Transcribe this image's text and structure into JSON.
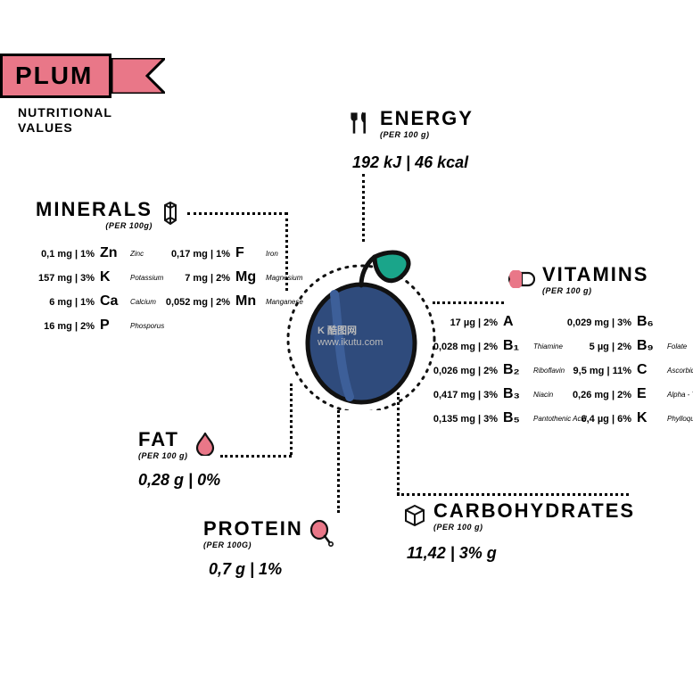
{
  "title": "PLUM",
  "subtitle_l1": "NUTRITIONAL",
  "subtitle_l2": "VALUES",
  "colors": {
    "accent": "#e97788",
    "plum_body": "#2f4b7c",
    "plum_highlight": "#3d5f99",
    "leaf": "#1aa58a",
    "outline": "#111111",
    "bg": "#ffffff"
  },
  "per_label": "(PER 100 g)",
  "per_label_alt": "(PER 100g)",
  "per_label_alt2": "(PER 100G)",
  "energy": {
    "title": "ENERGY",
    "value": "192 kJ | 46 kcal"
  },
  "fat": {
    "title": "FAT",
    "value": "0,28 g | 0%"
  },
  "protein": {
    "title": "PROTEIN",
    "value": "0,7 g | 1%"
  },
  "carbs": {
    "title": "CARBOHYDRATES",
    "value": "11,42 | 3% g"
  },
  "minerals": {
    "title": "MINERALS",
    "col1": [
      {
        "v": "0,1 mg | 1%",
        "s": "Zn",
        "n": "Zinc"
      },
      {
        "v": "157 mg | 3%",
        "s": "K",
        "n": "Potassium"
      },
      {
        "v": "6 mg | 1%",
        "s": "Ca",
        "n": "Calcium"
      },
      {
        "v": "16 mg | 2%",
        "s": "P",
        "n": "Phosporus"
      }
    ],
    "col2": [
      {
        "v": "0,17 mg | 1%",
        "s": "F",
        "n": "Iron"
      },
      {
        "v": "7 mg | 2%",
        "s": "Mg",
        "n": "Magnesium"
      },
      {
        "v": "0,052 mg | 2%",
        "s": "Mn",
        "n": "Manganese"
      }
    ]
  },
  "vitamins": {
    "title": "VITAMINS",
    "col1": [
      {
        "v": "17 µg | 2%",
        "s": "A",
        "n": ""
      },
      {
        "v": "0,028 mg | 2%",
        "s": "B₁",
        "n": "Thiamine"
      },
      {
        "v": "0,026 mg | 2%",
        "s": "B₂",
        "n": "Riboflavin"
      },
      {
        "v": "0,417 mg | 3%",
        "s": "B₃",
        "n": "Niacin"
      },
      {
        "v": "0,135 mg | 3%",
        "s": "B₅",
        "n": "Pantothenic Acid"
      }
    ],
    "col2": [
      {
        "v": "0,029 mg | 3%",
        "s": "B₆",
        "n": ""
      },
      {
        "v": "5 µg | 2%",
        "s": "B₉",
        "n": "Folate"
      },
      {
        "v": "9,5 mg | 11%",
        "s": "C",
        "n": "Ascorbic Acid"
      },
      {
        "v": "0,26 mg | 2%",
        "s": "E",
        "n": "Alpha - Tocopheler"
      },
      {
        "v": "6,4 µg | 6%",
        "s": "K",
        "n": "Phylloquinone"
      }
    ]
  },
  "watermark": {
    "l1": "K 酷图网",
    "l2": "www.ikutu.com"
  }
}
